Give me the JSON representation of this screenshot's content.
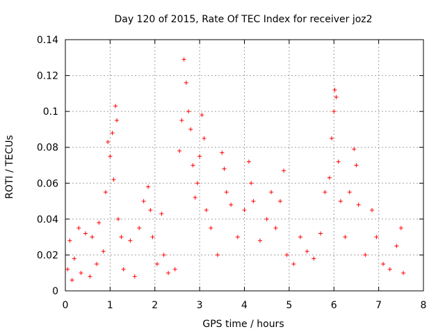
{
  "chart_data": {
    "type": "scatter",
    "title": "Day 120 of 2015, Rate Of TEC Index for receiver joz2",
    "xlabel": "GPS time / hours",
    "ylabel": "ROTI / TECUs",
    "xlim": [
      0,
      8
    ],
    "ylim": [
      0,
      0.14
    ],
    "x_ticks": [
      0,
      1,
      2,
      3,
      4,
      5,
      6,
      7,
      8
    ],
    "x_tick_labels": [
      "0",
      "1",
      "2",
      "3",
      "4",
      "5",
      "6",
      "7",
      "8"
    ],
    "y_ticks": [
      0,
      0.02,
      0.04,
      0.06,
      0.08,
      0.1,
      0.12,
      0.14
    ],
    "y_tick_labels": [
      "0",
      "0.02",
      "0.04",
      "0.06",
      "0.08",
      "0.1",
      "0.12",
      "0.14"
    ],
    "grid": true,
    "marker": "+",
    "series": [
      {
        "name": "ROTI",
        "color": "#ff0000",
        "data_range_x": [
          0.0,
          7.55
        ],
        "points": [
          [
            0.05,
            0.012
          ],
          [
            0.1,
            0.028
          ],
          [
            0.15,
            0.006
          ],
          [
            0.2,
            0.018
          ],
          [
            0.3,
            0.035
          ],
          [
            0.35,
            0.01
          ],
          [
            0.45,
            0.032
          ],
          [
            0.55,
            0.008
          ],
          [
            0.6,
            0.03
          ],
          [
            0.7,
            0.015
          ],
          [
            0.75,
            0.038
          ],
          [
            0.85,
            0.022
          ],
          [
            0.9,
            0.055
          ],
          [
            0.95,
            0.083
          ],
          [
            1.0,
            0.075
          ],
          [
            1.05,
            0.088
          ],
          [
            1.08,
            0.062
          ],
          [
            1.12,
            0.103
          ],
          [
            1.15,
            0.095
          ],
          [
            1.18,
            0.04
          ],
          [
            1.25,
            0.03
          ],
          [
            1.3,
            0.012
          ],
          [
            1.45,
            0.028
          ],
          [
            1.55,
            0.008
          ],
          [
            1.65,
            0.035
          ],
          [
            1.75,
            0.05
          ],
          [
            1.85,
            0.058
          ],
          [
            1.9,
            0.045
          ],
          [
            1.95,
            0.03
          ],
          [
            2.05,
            0.015
          ],
          [
            2.15,
            0.043
          ],
          [
            2.2,
            0.02
          ],
          [
            2.3,
            0.01
          ],
          [
            2.45,
            0.012
          ],
          [
            2.55,
            0.078
          ],
          [
            2.6,
            0.095
          ],
          [
            2.65,
            0.129
          ],
          [
            2.7,
            0.116
          ],
          [
            2.75,
            0.1
          ],
          [
            2.8,
            0.09
          ],
          [
            2.85,
            0.07
          ],
          [
            2.9,
            0.052
          ],
          [
            2.95,
            0.06
          ],
          [
            3.0,
            0.075
          ],
          [
            3.05,
            0.098
          ],
          [
            3.1,
            0.085
          ],
          [
            3.15,
            0.045
          ],
          [
            3.25,
            0.035
          ],
          [
            3.4,
            0.02
          ],
          [
            3.5,
            0.077
          ],
          [
            3.55,
            0.068
          ],
          [
            3.6,
            0.055
          ],
          [
            3.7,
            0.048
          ],
          [
            3.85,
            0.03
          ],
          [
            4.0,
            0.045
          ],
          [
            4.1,
            0.072
          ],
          [
            4.15,
            0.06
          ],
          [
            4.2,
            0.05
          ],
          [
            4.35,
            0.028
          ],
          [
            4.5,
            0.04
          ],
          [
            4.6,
            0.055
          ],
          [
            4.7,
            0.035
          ],
          [
            4.8,
            0.05
          ],
          [
            4.88,
            0.067
          ],
          [
            4.95,
            0.02
          ],
          [
            5.1,
            0.015
          ],
          [
            5.25,
            0.03
          ],
          [
            5.4,
            0.022
          ],
          [
            5.55,
            0.018
          ],
          [
            5.7,
            0.032
          ],
          [
            5.8,
            0.055
          ],
          [
            5.9,
            0.063
          ],
          [
            5.95,
            0.085
          ],
          [
            6.0,
            0.1
          ],
          [
            6.02,
            0.112
          ],
          [
            6.05,
            0.108
          ],
          [
            6.1,
            0.072
          ],
          [
            6.15,
            0.05
          ],
          [
            6.25,
            0.03
          ],
          [
            6.35,
            0.055
          ],
          [
            6.45,
            0.079
          ],
          [
            6.5,
            0.07
          ],
          [
            6.55,
            0.048
          ],
          [
            6.7,
            0.02
          ],
          [
            6.85,
            0.045
          ],
          [
            6.95,
            0.03
          ],
          [
            7.1,
            0.015
          ],
          [
            7.25,
            0.012
          ],
          [
            7.4,
            0.025
          ],
          [
            7.5,
            0.035
          ],
          [
            7.55,
            0.01
          ]
        ]
      }
    ]
  }
}
